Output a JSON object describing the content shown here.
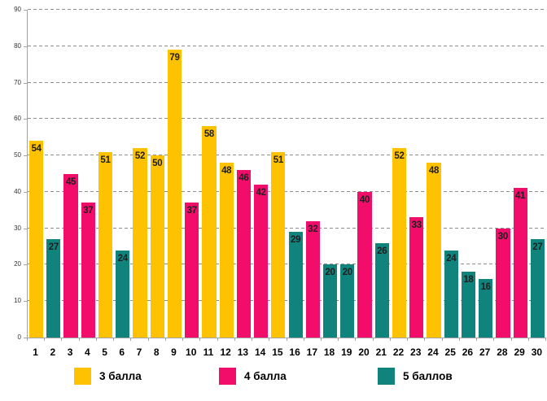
{
  "chart_data": {
    "type": "bar",
    "title": "",
    "xlabel": "",
    "ylabel": "",
    "categories": [
      "1",
      "2",
      "3",
      "4",
      "5",
      "6",
      "7",
      "8",
      "9",
      "10",
      "11",
      "12",
      "13",
      "14",
      "15",
      "16",
      "17",
      "18",
      "19",
      "20",
      "21",
      "22",
      "23",
      "24",
      "25",
      "26",
      "27",
      "28",
      "29",
      "30"
    ],
    "values": [
      54,
      27,
      45,
      37,
      51,
      24,
      52,
      50,
      79,
      37,
      58,
      48,
      46,
      42,
      51,
      29,
      32,
      20,
      20,
      40,
      26,
      52,
      33,
      48,
      24,
      18,
      16,
      30,
      41,
      27
    ],
    "groups": [
      "3 балла",
      "5 баллов",
      "4 балла",
      "4 балла",
      "3 балла",
      "5 баллов",
      "3 балла",
      "3 балла",
      "3 балла",
      "4 балла",
      "3 балла",
      "3 балла",
      "4 балла",
      "4 балла",
      "3 балла",
      "5 баллов",
      "4 балла",
      "5 баллов",
      "5 баллов",
      "4 балла",
      "5 баллов",
      "3 балла",
      "4 балла",
      "3 балла",
      "5 баллов",
      "5 баллов",
      "5 баллов",
      "4 балла",
      "4 балла",
      "5 баллов"
    ],
    "legend": [
      {
        "label": "3 балла",
        "color": "#FFC200"
      },
      {
        "label": "4 балла",
        "color": "#F20D6B"
      },
      {
        "label": "5 баллов",
        "color": "#11837D"
      }
    ],
    "value_labels_shown": true,
    "ylim": [
      0,
      90
    ],
    "ytick_step": 10,
    "yticks": [
      0,
      10,
      20,
      30,
      40,
      50,
      60,
      70,
      80,
      90
    ],
    "grid": "horizontal-dashed",
    "legend_position": "bottom",
    "colors": {
      "gridline": "#8f8f8f",
      "axis": "#a3a3a3",
      "value_label_text": "#1f1f1f",
      "axis_label_text": "#000000",
      "background": "#ffffff"
    }
  }
}
